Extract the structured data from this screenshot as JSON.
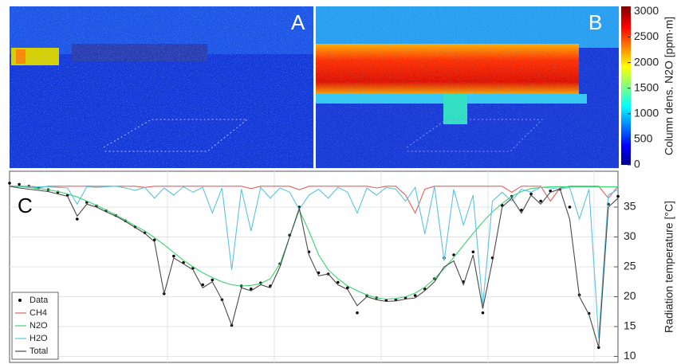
{
  "panels": {
    "a": "A",
    "b": "B"
  },
  "chart_data": [
    {
      "type": "colorbar",
      "label": "Column dens. N2O [ppm·m]",
      "clim": [
        0,
        3100
      ],
      "cticks": [
        0,
        500,
        1000,
        1500,
        2000,
        2500,
        3000
      ]
    },
    {
      "type": "line",
      "panel_label": "C",
      "ylabel": "Radiation temperature [°C]",
      "ylim": [
        9,
        41
      ],
      "yticks": [
        10,
        15,
        20,
        25,
        30,
        35
      ],
      "grid": true,
      "legend": "lower-left",
      "series": [
        {
          "name": "Data",
          "color": "#000000",
          "style": "markers",
          "values": [
            39,
            38.8,
            38.5,
            38.2,
            37.9,
            37.5,
            37,
            33,
            35.8,
            35.2,
            34.4,
            33.6,
            32.7,
            31.7,
            30.7,
            29.5,
            20.5,
            26.8,
            25.7,
            24.8,
            22,
            22.8,
            19.5,
            15.2,
            21.8,
            21.3,
            22.3,
            21.8,
            25.5,
            30.3,
            35,
            27.5,
            24,
            23.8,
            22.4,
            21.5,
            17.3,
            20.2,
            19.8,
            19.4,
            19.5,
            19.8,
            20.2,
            21.3,
            23,
            26.5,
            27,
            22.5,
            27.5,
            17.3,
            26.5,
            35.3,
            36.8,
            34.5,
            37.2,
            36,
            37.7,
            38,
            35,
            20.3,
            17.2,
            11.5,
            35.5,
            36.8
          ]
        },
        {
          "name": "CH4",
          "color": "#e0605a",
          "style": "line",
          "values": [
            38.5,
            38.5,
            38.5,
            38.2,
            38.5,
            38.5,
            38.5,
            38.5,
            38.5,
            38.5,
            38.5,
            38.5,
            38.5,
            38.5,
            38.3,
            38.5,
            38.5,
            38.5,
            38.5,
            38.5,
            38.5,
            38.5,
            38.5,
            38.5,
            38.5,
            38.1,
            38.5,
            38.5,
            38.5,
            38.5,
            37.9,
            38.5,
            38.5,
            38.5,
            38.5,
            38.5,
            38.5,
            38.5,
            38.2,
            38.5,
            38.5,
            37,
            34,
            38,
            38.5,
            38.5,
            38.5,
            38.5,
            38.5,
            38.5,
            38.5,
            38.5,
            37.5,
            38.5,
            38.5,
            38.5,
            36,
            38.2,
            38.5,
            38.5,
            38.5,
            38.5,
            36.5,
            38.5
          ]
        },
        {
          "name": "N2O",
          "color": "#3ad46e",
          "style": "line",
          "values": [
            38.5,
            38.4,
            38.3,
            38.1,
            37.9,
            37.6,
            37.2,
            36.7,
            36,
            35.3,
            34.5,
            33.7,
            32.8,
            31.9,
            31,
            29.9,
            28.7,
            27.4,
            26.1,
            25,
            24,
            23.2,
            22.5,
            22,
            21.8,
            21.9,
            22.2,
            23,
            25.5,
            30,
            34.5,
            31,
            27,
            24.5,
            23,
            21.8,
            21,
            20.3,
            19.8,
            19.6,
            19.7,
            20,
            20.6,
            21.6,
            23,
            24.7,
            26.6,
            28.6,
            30.6,
            32.5,
            34.2,
            35.6,
            36.8,
            37.6,
            38.1,
            38.3,
            38.4,
            38.4,
            38.4,
            38.4,
            38.4,
            38.4,
            38.4,
            38.4
          ]
        },
        {
          "name": "H2O",
          "color": "#5bc3e0",
          "style": "line",
          "values": [
            38.5,
            38.5,
            38.5,
            38.4,
            38.4,
            38.3,
            38.2,
            35.5,
            38.4,
            38.3,
            38.4,
            38.5,
            38.2,
            37.8,
            38.3,
            36.5,
            38.2,
            37,
            38.4,
            37.5,
            38.3,
            34,
            38.2,
            24.5,
            38,
            31,
            38.3,
            36.5,
            38.2,
            37.5,
            34.6,
            37,
            38,
            36.5,
            38.3,
            37.5,
            34,
            38.2,
            37,
            38.3,
            38,
            36,
            38.3,
            30.5,
            38.5,
            26,
            38,
            32,
            37,
            18.5,
            36,
            37.5,
            36,
            38,
            37.5,
            38.3,
            38.2,
            38,
            38.3,
            33,
            38,
            13,
            37,
            38
          ]
        },
        {
          "name": "Total",
          "color": "#4a4a4a",
          "style": "line",
          "values": [
            38.5,
            38.2,
            38,
            37.8,
            37.6,
            37.2,
            36.8,
            33.5,
            35.5,
            35,
            34.2,
            33.5,
            32.6,
            31.6,
            30.6,
            29.2,
            20.5,
            26.5,
            25.5,
            24.5,
            21.5,
            22.5,
            19.5,
            15.2,
            21.5,
            21,
            22,
            21.5,
            25,
            30,
            34.8,
            27,
            23.5,
            23.8,
            22,
            21.2,
            18.5,
            20,
            19.5,
            19.2,
            19.3,
            19.6,
            19.8,
            21,
            22.5,
            25,
            26,
            22,
            27,
            18,
            26,
            35,
            36.5,
            34,
            37,
            35.5,
            37.5,
            38,
            33,
            20,
            17,
            11.5,
            35,
            36.5
          ]
        }
      ]
    }
  ]
}
